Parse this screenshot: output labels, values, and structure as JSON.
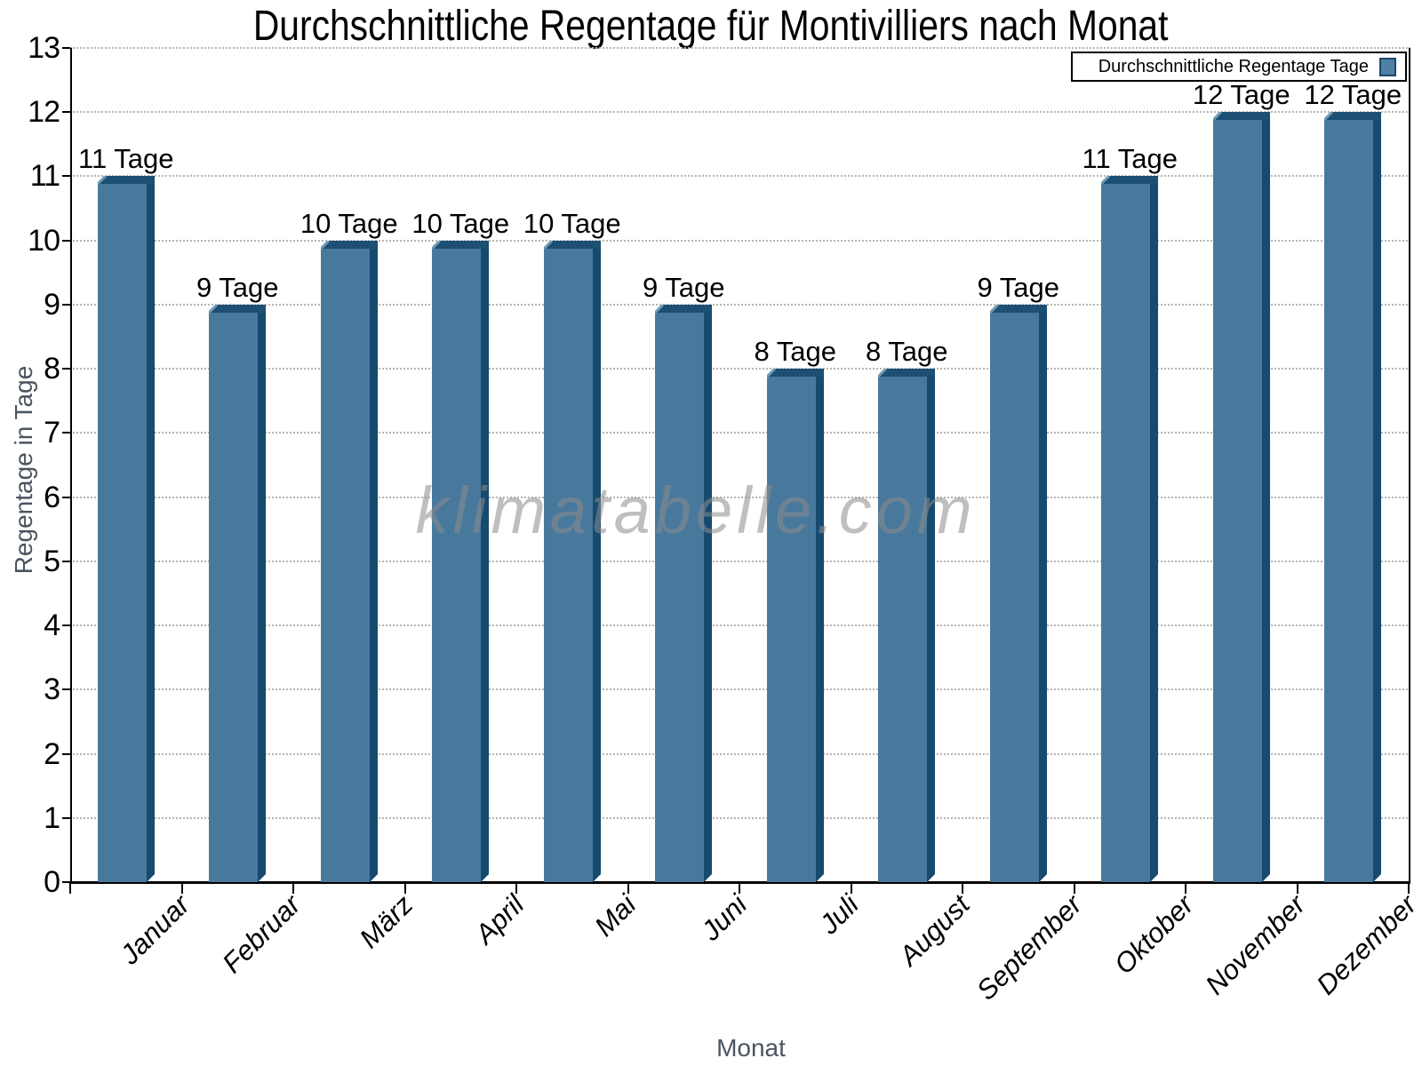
{
  "title": "Durchschnittliche Regentage für Montivilliers nach Monat",
  "watermark": "klimatabelle.com",
  "legend": {
    "label": "Durchschnittliche Regentage Tage"
  },
  "axes": {
    "x_label": "Monat",
    "y_label": "Regentage in Tage"
  },
  "chart_data": {
    "type": "bar",
    "title": "Durchschnittliche Regentage für Montivilliers nach Monat",
    "categories": [
      "Januar",
      "Februar",
      "März",
      "April",
      "Mai",
      "Juni",
      "Juli",
      "August",
      "September",
      "Oktober",
      "November",
      "Dezember"
    ],
    "series": [
      {
        "name": "Durchschnittliche Regentage Tage",
        "values": [
          11,
          9,
          10,
          10,
          10,
          9,
          8,
          8,
          9,
          11,
          12,
          12
        ]
      }
    ],
    "bar_labels": [
      "11 Tage",
      "9 Tage",
      "10 Tage",
      "10 Tage",
      "10 Tage",
      "9 Tage",
      "8 Tage",
      "8 Tage",
      "9 Tage",
      "11 Tage",
      "12 Tage",
      "12 Tage"
    ],
    "xlabel": "Monat",
    "ylabel": "Regentage in Tage",
    "ylim": [
      0,
      13
    ],
    "y_ticks": [
      0,
      1,
      2,
      3,
      4,
      5,
      6,
      7,
      8,
      9,
      10,
      11,
      12,
      13
    ],
    "grid": "horizontal-dotted",
    "legend_position": "top-right",
    "colors": {
      "bar_face": "#48799C",
      "bar_top": "#1D4F72",
      "bar_side": "#164A6E",
      "bar_highlight": "#6F9AB5",
      "axis_title_text": "#4A5460",
      "gridline": "#B5B5B5",
      "watermark_gray": "#8C8C8C"
    }
  }
}
